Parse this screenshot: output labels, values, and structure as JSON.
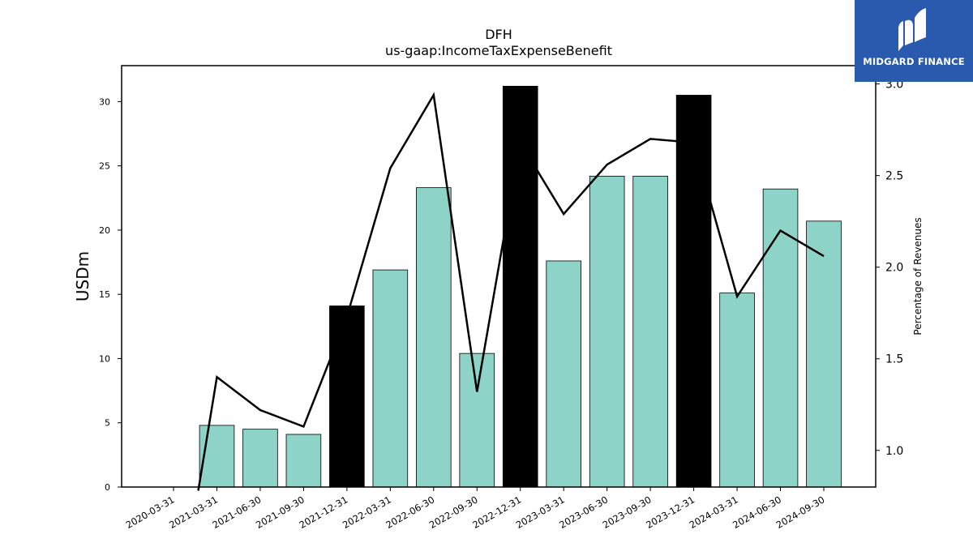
{
  "brand": {
    "name": "MIDGARD FINANCE",
    "bg_color": "#2a5aad"
  },
  "colors": {
    "bar_regular": "#8dd3c7",
    "bar_highlight": "#000000",
    "line": "#000000"
  },
  "chart_data": {
    "type": "bar",
    "title": "DFH",
    "subtitle": "us-gaap:IncomeTaxExpenseBenefit",
    "ylabel": "USDm",
    "y2label": "Percentage of Revenues",
    "ylim": [
      0,
      32.8
    ],
    "y2lim": [
      0.8,
      3.1
    ],
    "yticks": [
      0,
      5,
      10,
      15,
      20,
      25,
      30
    ],
    "y2ticks": [
      1.0,
      1.5,
      2.0,
      2.5,
      3.0
    ],
    "y2tick_labels": [
      "1.0",
      "1.5",
      "2.0",
      "2.5",
      "3.0"
    ],
    "categories": [
      "2020-03-31",
      "2021-03-31",
      "2021-06-30",
      "2021-09-30",
      "2021-12-31",
      "2022-03-31",
      "2022-06-30",
      "2022-09-30",
      "2022-12-31",
      "2023-03-31",
      "2023-06-30",
      "2023-09-30",
      "2023-12-31",
      "2024-03-31",
      "2024-06-30",
      "2024-09-30"
    ],
    "series": [
      {
        "type": "bar",
        "values": [
          null,
          4.8,
          4.5,
          4.1,
          14.1,
          16.9,
          23.3,
          10.4,
          31.2,
          17.6,
          24.2,
          24.2,
          30.5,
          15.1,
          23.2,
          20.7
        ],
        "highlight": [
          false,
          false,
          false,
          false,
          true,
          false,
          false,
          false,
          true,
          false,
          false,
          false,
          true,
          false,
          false,
          false
        ]
      },
      {
        "type": "line",
        "axis": "secondary",
        "values": [
          null,
          1.4,
          1.22,
          1.13,
          1.73,
          2.54,
          2.94,
          1.32,
          2.68,
          2.29,
          2.56,
          2.7,
          2.68,
          1.84,
          2.2,
          2.06
        ],
        "start": 0.78
      }
    ],
    "grid": false,
    "legend": "none"
  }
}
